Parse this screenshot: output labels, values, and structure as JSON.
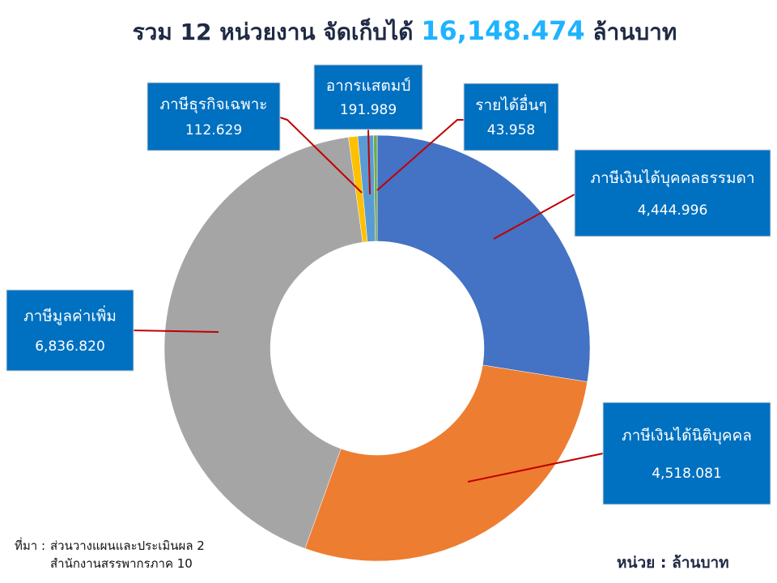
{
  "chart_data": {
    "type": "donut",
    "title": "รวม 12 หน่วยงาน จัดเก็บได้",
    "total_label": "16,148.474",
    "title_unit": "ล้านบาท",
    "categories": [
      "ภาษีเงินได้บุคคลธรรมดา",
      "ภาษีเงินได้นิติบุคคล",
      "ภาษีมูลค่าเพิ่ม",
      "ภาษีธุรกิจเฉพาะ",
      "อากรแสตมป์",
      "รายได้อื่นๆ"
    ],
    "values": [
      4444.996,
      4518.081,
      6836.82,
      112.629,
      191.989,
      43.958
    ],
    "value_labels": [
      "4,444.996",
      "4,518.081",
      "6,836.820",
      "112.629",
      "191.989",
      "43.958"
    ],
    "colors": [
      "#4472c4",
      "#ed7d31",
      "#a5a5a5",
      "#ffc000",
      "#5b9bd5",
      "#70ad47"
    ],
    "source_label": "ที่มา :",
    "source_lines": [
      "ส่วนวางแผนและประเมินผล 2",
      "สำนักงานสรรพากรภาค 10"
    ],
    "unit_note": "หน่วย : ล้านบาท"
  }
}
